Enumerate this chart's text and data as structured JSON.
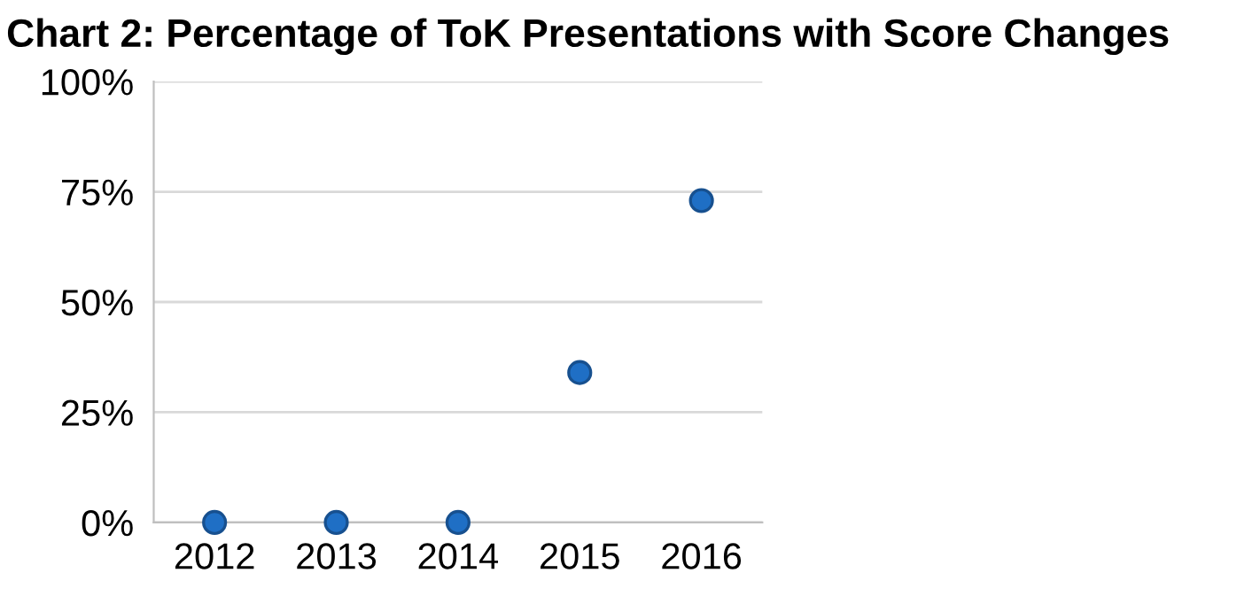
{
  "chart_data": {
    "type": "scatter",
    "title": "Chart 2: Percentage of ToK Presentations with Score Changes",
    "categories": [
      "2012",
      "2013",
      "2014",
      "2015",
      "2016"
    ],
    "series": [
      {
        "color": "#1f6fc5",
        "values": [
          0,
          0,
          0,
          34,
          73
        ]
      }
    ],
    "ylim": [
      0,
      100
    ],
    "yticks": [
      {
        "value": 0,
        "label": "0%"
      },
      {
        "value": 25,
        "label": "25%"
      },
      {
        "value": 50,
        "label": "50%"
      },
      {
        "value": 75,
        "label": "75%"
      },
      {
        "value": 100,
        "label": "100%"
      }
    ],
    "grid": "y",
    "marker": "circle"
  }
}
